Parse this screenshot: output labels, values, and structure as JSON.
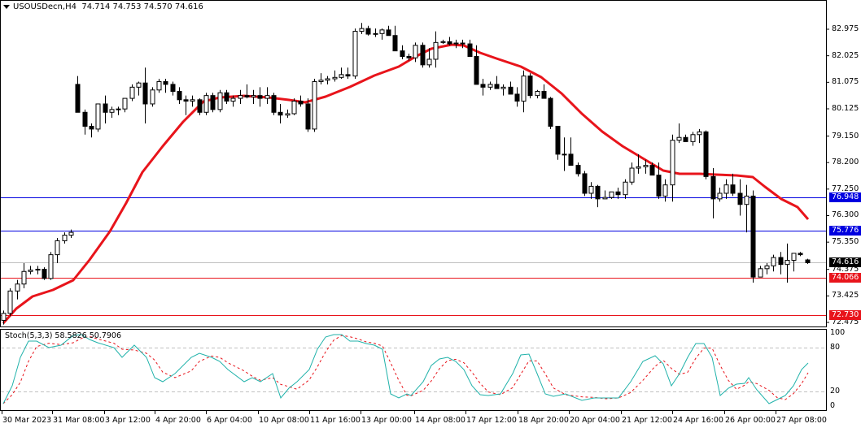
{
  "header": {
    "symbol_timeframe": "USOUSDecn,H4",
    "ohlc": "74.714 74.753 74.570 74.616"
  },
  "indicator": {
    "label": "Stoch(5,3,3) 58.5826 50.7906"
  },
  "colors": {
    "bull_fill": "#ffffff",
    "bear_fill": "#000000",
    "candle_outline": "#000000",
    "ma_line": "#e8141b",
    "blue_level": "#0000e0",
    "red_level": "#e8141b",
    "current_price_line": "#c0c0c0",
    "stoch_main": "#20b2aa",
    "stoch_signal": "#e8141b",
    "stoch_levels": "#c0c0c0"
  },
  "price_axis": {
    "ticks": [
      "82.975",
      "82.025",
      "81.075",
      "80.125",
      "79.150",
      "78.200",
      "77.250",
      "76.300",
      "75.350",
      "74.375",
      "73.425",
      "72.475"
    ]
  },
  "price_tags": [
    {
      "value": "76.948",
      "color": "#0000e0"
    },
    {
      "value": "75.776",
      "color": "#0000e0"
    },
    {
      "value": "74.616",
      "color": "#000000"
    },
    {
      "value": "74.066",
      "color": "#e8141b"
    },
    {
      "value": "72.730",
      "color": "#e8141b"
    }
  ],
  "stoch_axis": {
    "ticks": [
      "100",
      "80",
      "20",
      "0"
    ]
  },
  "time_axis": {
    "labels": [
      "30 Mar 2023",
      "31 Mar 08:00",
      "3 Apr 12:00",
      "4 Apr 20:00",
      "6 Apr 04:00",
      "10 Apr 08:00",
      "11 Apr 16:00",
      "13 Apr 00:00",
      "14 Apr 08:00",
      "17 Apr 12:00",
      "18 Apr 20:00",
      "20 Apr 04:00",
      "21 Apr 12:00",
      "24 Apr 16:00",
      "26 Apr 00:00",
      "27 Apr 08:00"
    ]
  },
  "chart_data": {
    "type": "candlestick",
    "title": "USOUSDecn,H4",
    "ohlc_last": {
      "open": 74.714,
      "high": 74.753,
      "low": 74.57,
      "close": 74.616
    },
    "ylim": [
      72.3,
      83.6
    ],
    "horizontal_levels": [
      {
        "price": 76.948,
        "color": "blue"
      },
      {
        "price": 75.776,
        "color": "blue"
      },
      {
        "price": 74.066,
        "color": "red"
      },
      {
        "price": 72.73,
        "color": "red"
      },
      {
        "price": 74.616,
        "color": "gray",
        "note": "current price"
      }
    ],
    "candles": [
      [
        72.55,
        72.9,
        72.4,
        72.8
      ],
      [
        72.8,
        73.7,
        72.7,
        73.6
      ],
      [
        73.6,
        74.0,
        73.3,
        73.85
      ],
      [
        73.85,
        74.6,
        73.7,
        74.3
      ],
      [
        74.3,
        74.5,
        74.2,
        74.35
      ],
      [
        74.35,
        74.5,
        74.2,
        74.38
      ],
      [
        74.38,
        74.45,
        74.0,
        74.05
      ],
      [
        74.05,
        75.0,
        74.0,
        74.9
      ],
      [
        74.9,
        75.5,
        74.6,
        75.4
      ],
      [
        75.4,
        75.7,
        75.3,
        75.6
      ],
      [
        75.6,
        75.8,
        75.5,
        75.7
      ],
      [
        81.0,
        81.3,
        80.0,
        80.0
      ],
      [
        80.0,
        80.1,
        79.2,
        79.5
      ],
      [
        79.5,
        79.6,
        79.1,
        79.4
      ],
      [
        79.4,
        80.3,
        79.3,
        80.3
      ],
      [
        80.3,
        80.6,
        79.6,
        80.0
      ],
      [
        80.0,
        80.2,
        79.8,
        80.1
      ],
      [
        80.1,
        80.2,
        79.9,
        80.12
      ],
      [
        80.12,
        80.5,
        80.0,
        80.5
      ],
      [
        80.5,
        81.0,
        80.4,
        80.9
      ],
      [
        80.9,
        81.1,
        80.6,
        81.05
      ],
      [
        81.05,
        81.6,
        79.6,
        80.3
      ],
      [
        80.3,
        80.9,
        80.2,
        80.8
      ],
      [
        80.8,
        81.2,
        80.7,
        81.1
      ],
      [
        81.1,
        81.2,
        80.7,
        81.0
      ],
      [
        81.0,
        81.1,
        80.6,
        80.75
      ],
      [
        80.75,
        80.9,
        80.3,
        80.45
      ],
      [
        80.45,
        80.6,
        79.9,
        80.4
      ],
      [
        80.4,
        80.6,
        80.2,
        80.45
      ],
      [
        80.45,
        80.5,
        79.9,
        80.0
      ],
      [
        80.0,
        80.7,
        79.9,
        80.6
      ],
      [
        80.6,
        80.7,
        80.0,
        80.1
      ],
      [
        80.1,
        80.8,
        80.0,
        80.7
      ],
      [
        80.7,
        80.8,
        80.3,
        80.4
      ],
      [
        80.4,
        80.6,
        80.2,
        80.5
      ],
      [
        80.5,
        80.8,
        80.3,
        80.6
      ],
      [
        80.6,
        81.0,
        80.5,
        80.55
      ],
      [
        80.55,
        80.8,
        80.3,
        80.6
      ],
      [
        80.6,
        80.9,
        80.2,
        80.5
      ],
      [
        80.5,
        80.9,
        80.3,
        80.6
      ],
      [
        80.6,
        80.7,
        79.9,
        80.0
      ],
      [
        80.0,
        80.3,
        79.6,
        79.9
      ],
      [
        79.9,
        80.1,
        79.8,
        79.95
      ],
      [
        79.95,
        80.5,
        79.9,
        80.4
      ],
      [
        80.4,
        80.6,
        80.2,
        80.3
      ],
      [
        80.3,
        80.5,
        79.3,
        79.4
      ],
      [
        79.4,
        81.2,
        79.3,
        81.1
      ],
      [
        81.1,
        81.4,
        81.0,
        81.15
      ],
      [
        81.15,
        81.3,
        81.0,
        81.2
      ],
      [
        81.2,
        81.5,
        81.1,
        81.25
      ],
      [
        81.25,
        81.6,
        81.2,
        81.35
      ],
      [
        81.35,
        81.6,
        81.2,
        81.3
      ],
      [
        81.3,
        83.0,
        81.2,
        82.9
      ],
      [
        82.9,
        83.2,
        82.8,
        83.0
      ],
      [
        83.0,
        83.1,
        82.75,
        82.8
      ],
      [
        82.8,
        83.0,
        82.7,
        82.82
      ],
      [
        82.82,
        83.0,
        82.6,
        82.95
      ],
      [
        82.95,
        83.1,
        82.8,
        82.75
      ],
      [
        82.75,
        83.1,
        82.2,
        82.2
      ],
      [
        82.2,
        82.4,
        81.9,
        82.0
      ],
      [
        82.0,
        82.1,
        81.85,
        81.95
      ],
      [
        81.95,
        82.5,
        81.8,
        82.4
      ],
      [
        82.4,
        82.5,
        81.6,
        81.7
      ],
      [
        81.7,
        82.3,
        81.6,
        81.9
      ],
      [
        81.9,
        82.9,
        81.6,
        82.5
      ],
      [
        82.5,
        82.6,
        82.45,
        82.53
      ],
      [
        82.53,
        82.7,
        82.4,
        82.45
      ],
      [
        82.45,
        82.6,
        82.3,
        82.48
      ],
      [
        82.48,
        82.6,
        82.3,
        82.45
      ],
      [
        82.45,
        82.6,
        82.2,
        82.0
      ],
      [
        82.0,
        82.4,
        81.1,
        81.0
      ],
      [
        81.0,
        81.2,
        80.6,
        80.9
      ],
      [
        80.9,
        81.1,
        80.8,
        81.0
      ],
      [
        81.0,
        81.3,
        80.9,
        80.85
      ],
      [
        80.85,
        81.0,
        80.6,
        80.9
      ],
      [
        80.9,
        81.1,
        80.8,
        80.65
      ],
      [
        80.65,
        80.9,
        80.2,
        80.4
      ],
      [
        80.4,
        81.5,
        80.0,
        81.3
      ],
      [
        81.3,
        81.4,
        80.5,
        80.6
      ],
      [
        80.6,
        80.8,
        80.5,
        80.75
      ],
      [
        80.75,
        81.0,
        80.5,
        80.5
      ],
      [
        80.5,
        80.55,
        79.4,
        79.5
      ],
      [
        79.5,
        79.5,
        78.3,
        78.5
      ],
      [
        78.5,
        79.1,
        77.9,
        78.5
      ],
      [
        78.5,
        79.1,
        78.4,
        78.1
      ],
      [
        78.1,
        78.2,
        77.7,
        77.8
      ],
      [
        77.8,
        77.9,
        77.0,
        77.1
      ],
      [
        77.1,
        77.5,
        76.9,
        77.35
      ],
      [
        77.35,
        77.4,
        76.6,
        76.9
      ],
      [
        76.9,
        77.2,
        76.9,
        76.95
      ],
      [
        76.95,
        77.1,
        76.9,
        77.15
      ],
      [
        77.15,
        77.3,
        76.9,
        77.05
      ],
      [
        77.05,
        77.6,
        76.9,
        77.5
      ],
      [
        77.5,
        78.2,
        77.4,
        78.0
      ],
      [
        78.0,
        78.5,
        77.8,
        78.05
      ],
      [
        78.05,
        78.3,
        77.8,
        78.1
      ],
      [
        78.1,
        78.2,
        77.8,
        77.75
      ],
      [
        77.75,
        78.2,
        76.9,
        77.0
      ],
      [
        77.0,
        77.6,
        76.8,
        77.4
      ],
      [
        77.4,
        79.2,
        76.8,
        79.0
      ],
      [
        79.0,
        79.6,
        78.9,
        79.1
      ],
      [
        79.1,
        79.2,
        79.0,
        78.95
      ],
      [
        78.95,
        79.3,
        78.8,
        79.2
      ],
      [
        79.2,
        79.4,
        78.9,
        79.3
      ],
      [
        79.3,
        79.35,
        77.6,
        77.7
      ],
      [
        77.7,
        78.0,
        76.2,
        76.9
      ],
      [
        76.9,
        77.3,
        76.8,
        77.1
      ],
      [
        77.1,
        77.6,
        76.9,
        77.4
      ],
      [
        77.4,
        77.8,
        77.0,
        77.1
      ],
      [
        77.1,
        77.6,
        76.3,
        76.7
      ],
      [
        76.7,
        77.4,
        75.7,
        77.0
      ],
      [
        77.0,
        77.2,
        73.9,
        74.1
      ],
      [
        74.1,
        74.5,
        74.1,
        74.4
      ],
      [
        74.4,
        74.6,
        74.2,
        74.5
      ],
      [
        74.5,
        74.9,
        74.3,
        74.8
      ],
      [
        74.8,
        75.0,
        74.2,
        74.55
      ],
      [
        74.55,
        75.3,
        73.9,
        74.7
      ],
      [
        74.7,
        74.9,
        74.3,
        74.95
      ],
      [
        74.95,
        75.0,
        74.85,
        74.9
      ],
      [
        74.714,
        74.753,
        74.57,
        74.616
      ]
    ],
    "ma_path_note": "Red moving average approximated",
    "stochastic": {
      "main_label": "%K",
      "signal_label": "%D",
      "k_value": 58.5826,
      "d_value": 50.7906,
      "levels": [
        20,
        80
      ],
      "ylim": [
        0,
        100
      ]
    }
  }
}
